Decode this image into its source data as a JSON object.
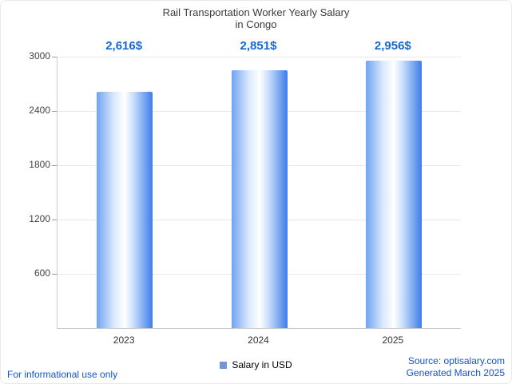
{
  "title": {
    "line1": "Rail Transportation Worker Yearly Salary",
    "line2": "in Congo"
  },
  "chart_data": {
    "type": "bar",
    "title": "Rail Transportation Worker Yearly Salary in Congo",
    "categories": [
      "2023",
      "2024",
      "2025"
    ],
    "values": [
      2616,
      2851,
      2956
    ],
    "value_labels": [
      "2,616$",
      "2,851$",
      "2,956$"
    ],
    "series_name": "Salary in USD",
    "xlabel": "",
    "ylabel": "",
    "ylim": [
      0,
      3000
    ],
    "yticks": [
      600,
      1200,
      1800,
      2400,
      3000
    ],
    "grid": true,
    "legend_position": "bottom",
    "bar_gradient": [
      "#6ea3f3",
      "#ffffff",
      "#3d7de9"
    ],
    "value_label_color": "#1767d2"
  },
  "legend": {
    "label": "Salary in USD",
    "swatch_color": "#7396d6"
  },
  "footer": {
    "disclaimer": "For informational use only",
    "source": "Source: optisalary.com",
    "generated": "Generated March 2025"
  }
}
